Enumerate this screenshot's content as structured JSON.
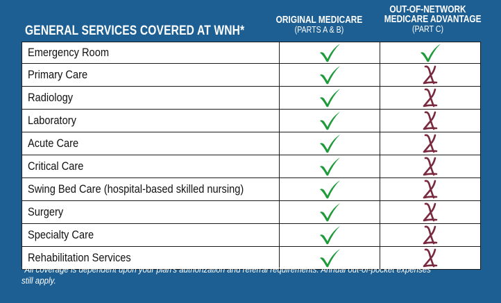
{
  "title": "GENERAL SERVICES COVERED AT WNH*",
  "columns": [
    {
      "line1": "ORIGINAL MEDICARE",
      "line2": "(PARTS A & B)"
    },
    {
      "line1": "OUT-OF-NETWORK",
      "line1b": "MEDICARE ADVANTAGE",
      "line2": "(PART C)"
    }
  ],
  "rows": [
    {
      "service": "Emergency Room",
      "original": "check-icon",
      "advantage": "check-icon"
    },
    {
      "service": "Primary Care",
      "original": "check-icon",
      "advantage": "x-icon"
    },
    {
      "service": "Radiology",
      "original": "check-icon",
      "advantage": "x-icon"
    },
    {
      "service": "Laboratory",
      "original": "check-icon",
      "advantage": "x-icon"
    },
    {
      "service": "Acute Care",
      "original": "check-icon",
      "advantage": "x-icon"
    },
    {
      "service": "Critical Care",
      "original": "check-icon",
      "advantage": "x-icon"
    },
    {
      "service": "Swing Bed Care (hospital-based skilled nursing)",
      "original": "check-icon",
      "advantage": "x-icon"
    },
    {
      "service": "Surgery",
      "original": "check-icon",
      "advantage": "x-icon"
    },
    {
      "service": "Specialty Care",
      "original": "check-icon",
      "advantage": "x-icon"
    },
    {
      "service": "Rehabilitation Services",
      "original": "check-icon",
      "advantage": "x-icon"
    }
  ],
  "footnote": "*All coverage is dependent upon your plan's authorization and referral requirements. Annual out-of-pocket expenses still apply.",
  "colors": {
    "background": "#1d5f93",
    "check": "#1e9a3a",
    "x": "#7a2a3e"
  }
}
